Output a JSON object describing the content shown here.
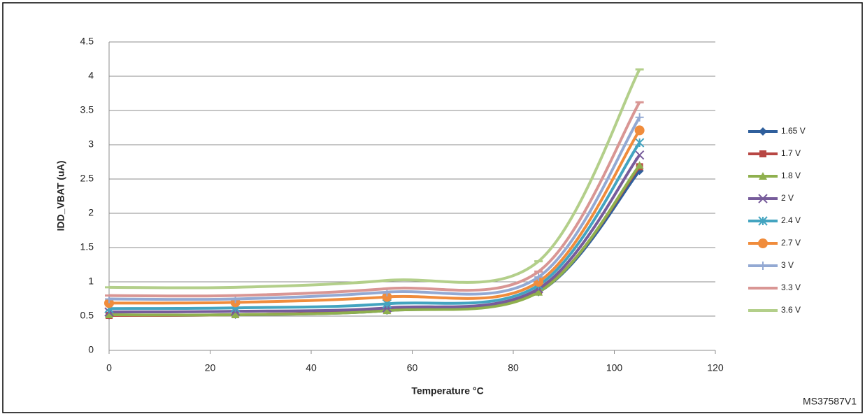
{
  "chart_data": {
    "type": "line",
    "xlabel": "Temperature °C",
    "ylabel": "IDD_VBAT (uA)",
    "annotation": "MS37587V1",
    "x": [
      0,
      25,
      55,
      85,
      105
    ],
    "xlim": [
      0,
      120
    ],
    "xticks": [
      0,
      20,
      40,
      60,
      80,
      100,
      120
    ],
    "ylim": [
      0,
      4.5
    ],
    "yticks": [
      0,
      0.5,
      1,
      1.5,
      2,
      2.5,
      3,
      3.5,
      4,
      4.5
    ],
    "grid": true,
    "legend": "right",
    "smooth": true,
    "series": [
      {
        "name": "1.65 V",
        "color": "#2f5f9c",
        "marker": "diamond",
        "values": [
          0.51,
          0.52,
          0.58,
          0.85,
          2.62
        ]
      },
      {
        "name": "1.7 V",
        "color": "#b84744",
        "marker": "square",
        "values": [
          0.51,
          0.52,
          0.59,
          0.86,
          2.68
        ]
      },
      {
        "name": "1.8 V",
        "color": "#8fb04e",
        "marker": "triangle",
        "values": [
          0.52,
          0.52,
          0.58,
          0.85,
          2.7
        ]
      },
      {
        "name": "2 V",
        "color": "#775c9b",
        "marker": "x",
        "values": [
          0.56,
          0.57,
          0.62,
          0.9,
          2.85
        ]
      },
      {
        "name": "2.4 V",
        "color": "#43a4c0",
        "marker": "star",
        "values": [
          0.61,
          0.62,
          0.68,
          0.95,
          3.03
        ]
      },
      {
        "name": "2.7 V",
        "color": "#f08c3c",
        "marker": "circle",
        "values": [
          0.69,
          0.7,
          0.78,
          1.0,
          3.21
        ]
      },
      {
        "name": "3 V",
        "color": "#93a9d3",
        "marker": "plus",
        "values": [
          0.75,
          0.75,
          0.85,
          1.07,
          3.4
        ]
      },
      {
        "name": "3.3 V",
        "color": "#d99694",
        "marker": "dash",
        "values": [
          0.8,
          0.8,
          0.9,
          1.15,
          3.62
        ]
      },
      {
        "name": "3.6 V",
        "color": "#b3cf8a",
        "marker": "dash",
        "values": [
          0.92,
          0.92,
          1.02,
          1.3,
          4.1
        ]
      }
    ]
  }
}
